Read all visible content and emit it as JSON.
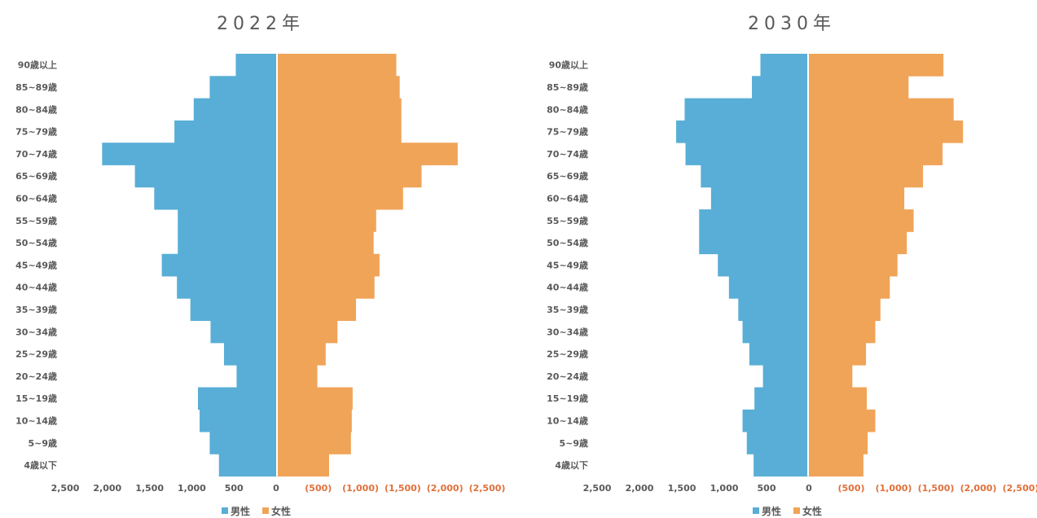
{
  "colors": {
    "male": "#58aed6",
    "female": "#f0a458",
    "tick_neg": "#e0703a",
    "text": "#595959"
  },
  "legend": {
    "male": "男性",
    "female": "女性"
  },
  "chart_data": [
    {
      "type": "bar",
      "orientation": "horizontal-diverging",
      "title": "2022年",
      "categories": [
        "90歳以上",
        "85~89歳",
        "80~84歳",
        "75~79歳",
        "70~74歳",
        "65~69歳",
        "60~64歳",
        "55~59歳",
        "50~54歳",
        "45~49歳",
        "40~44歳",
        "35~39歳",
        "30~34歳",
        "25~29歳",
        "20~24歳",
        "15~19歳",
        "10~14歳",
        "5~9歳",
        "4歳以下"
      ],
      "series": [
        {
          "name": "男性",
          "values": [
            490,
            800,
            990,
            1220,
            2080,
            1690,
            1460,
            1180,
            1180,
            1370,
            1190,
            1030,
            790,
            630,
            480,
            940,
            920,
            800,
            690
          ]
        },
        {
          "name": "女性",
          "values": [
            1420,
            1460,
            1480,
            1480,
            2150,
            1720,
            1500,
            1180,
            1150,
            1220,
            1160,
            940,
            720,
            580,
            480,
            900,
            890,
            880,
            620
          ]
        }
      ],
      "x_tick_labels": [
        "2,500",
        "2,000",
        "1,500",
        "1,000",
        "500",
        "0",
        "(500)",
        "(1,000)",
        "(1,500)",
        "(2,000)",
        "(2,500)"
      ],
      "xlim": [
        -2500,
        2500
      ]
    },
    {
      "type": "bar",
      "orientation": "horizontal-diverging",
      "title": "2030年",
      "categories": [
        "90歳以上",
        "85~89歳",
        "80~84歳",
        "75~79歳",
        "70~74歳",
        "65~69歳",
        "60~64歳",
        "55~59歳",
        "50~54歳",
        "45~49歳",
        "40~44歳",
        "35~39歳",
        "30~34歳",
        "25~29歳",
        "20~24歳",
        "15~19歳",
        "10~14歳",
        "5~9歳",
        "4歳以下"
      ],
      "series": [
        {
          "name": "男性",
          "values": [
            560,
            660,
            1450,
            1550,
            1440,
            1260,
            1140,
            1280,
            1280,
            1060,
            930,
            820,
            770,
            690,
            530,
            630,
            770,
            720,
            640
          ]
        },
        {
          "name": "女性",
          "values": [
            1590,
            1180,
            1710,
            1820,
            1580,
            1350,
            1130,
            1240,
            1160,
            1050,
            960,
            850,
            790,
            680,
            520,
            690,
            790,
            700,
            650
          ]
        }
      ],
      "x_tick_labels": [
        "2,500",
        "2,000",
        "1,500",
        "1,000",
        "500",
        "0",
        "(500)",
        "(1,000)",
        "(1,500)",
        "(2,000)",
        "(2,500)"
      ],
      "xlim": [
        -2500,
        2500
      ]
    }
  ]
}
